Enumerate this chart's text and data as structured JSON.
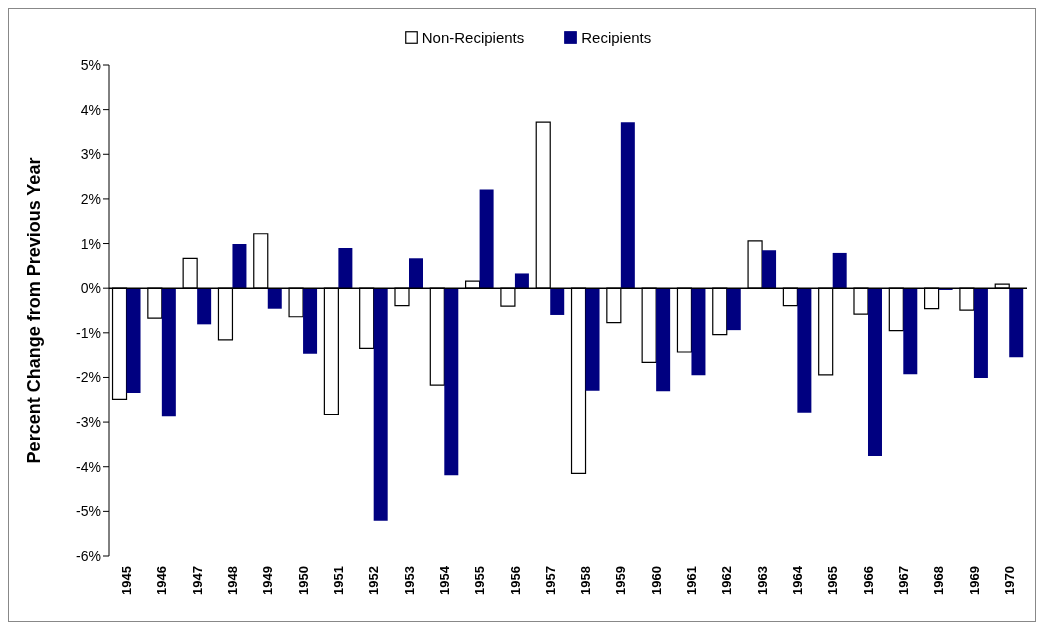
{
  "chart_data": {
    "type": "bar",
    "ylabel": "Percent Change from Previous Year",
    "categories": [
      "1945",
      "1946",
      "1947",
      "1948",
      "1949",
      "1950",
      "1951",
      "1952",
      "1953",
      "1954",
      "1955",
      "1956",
      "1957",
      "1958",
      "1959",
      "1960",
      "1961",
      "1962",
      "1963",
      "1964",
      "1965",
      "1966",
      "1967",
      "1968",
      "1969",
      "1970"
    ],
    "series": [
      {
        "name": "Non-Recipients",
        "color": "#ffffff",
        "values": [
          -2.49,
          -0.67,
          0.67,
          -1.16,
          1.22,
          -0.64,
          -2.83,
          -1.35,
          -0.39,
          -2.17,
          0.16,
          -0.4,
          3.72,
          -4.15,
          -0.77,
          -1.66,
          -1.43,
          -1.04,
          1.06,
          -0.39,
          -1.94,
          -0.58,
          -0.95,
          -0.46,
          -0.49,
          0.09
        ]
      },
      {
        "name": "Recipients",
        "color": "#000080",
        "values": [
          -2.35,
          -2.87,
          -0.81,
          0.99,
          -0.46,
          -1.47,
          0.9,
          -5.21,
          0.67,
          -4.19,
          2.21,
          0.33,
          -0.6,
          -2.3,
          3.72,
          -2.31,
          -1.95,
          -0.94,
          0.85,
          -2.79,
          0.79,
          -3.76,
          -1.93,
          -0.04,
          -2.01,
          -1.55
        ]
      }
    ],
    "ylim": [
      -6,
      5
    ],
    "yticks": [
      {
        "value": -6,
        "label": "-6%"
      },
      {
        "value": -5,
        "label": "-5%"
      },
      {
        "value": -4,
        "label": "-4%"
      },
      {
        "value": -3,
        "label": "-3%"
      },
      {
        "value": -2,
        "label": "-2%"
      },
      {
        "value": -1,
        "label": "-1%"
      },
      {
        "value": 0,
        "label": "0%"
      },
      {
        "value": 1,
        "label": "1%"
      },
      {
        "value": 2,
        "label": "2%"
      },
      {
        "value": 3,
        "label": "3%"
      },
      {
        "value": 4,
        "label": "4%"
      },
      {
        "value": 5,
        "label": "5%"
      }
    ],
    "legend": "top"
  }
}
